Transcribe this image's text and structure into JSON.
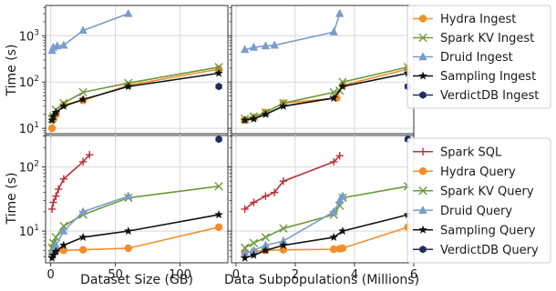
{
  "figure": {
    "ylabel_top": "Time (s)",
    "ylabel_bottom": "Time (s)",
    "xlabel_left": "Dataset Size (GB)",
    "xlabel_right": "Data Subpopulations (Millions)"
  },
  "styles": {
    "Hydra Ingest": {
      "color": "#f28e2b",
      "marker": "circle"
    },
    "Spark KV Ingest": {
      "color": "#6b9a3a",
      "marker": "x"
    },
    "Druid Ingest": {
      "color": "#7b9ccf",
      "marker": "triangle"
    },
    "Sampling Ingest": {
      "color": "#111111",
      "marker": "star"
    },
    "VerdictDB Ingest": {
      "color": "#1f2d5c",
      "marker": "hexagon"
    },
    "Spark SQL": {
      "color": "#b8323a",
      "marker": "plus"
    },
    "Hydra Query": {
      "color": "#f28e2b",
      "marker": "circle"
    },
    "Spark KV Query": {
      "color": "#6b9a3a",
      "marker": "x"
    },
    "Druid Query": {
      "color": "#7b9ccf",
      "marker": "triangle"
    },
    "Sampling Query": {
      "color": "#111111",
      "marker": "star"
    },
    "VerdictDB Query": {
      "color": "#1f2d5c",
      "marker": "hexagon"
    }
  },
  "legend_top": [
    "Hydra Ingest",
    "Spark KV Ingest",
    "Druid Ingest",
    "Sampling Ingest",
    "VerdictDB Ingest"
  ],
  "legend_bottom": [
    "Spark SQL",
    "Hydra Query",
    "Spark KV Query",
    "Druid Query",
    "Sampling Query",
    "VerdictDB Query"
  ],
  "chart_data": [
    {
      "id": "top-left",
      "type": "line",
      "yscale": "log",
      "xlim": [
        -4,
        137
      ],
      "ylim": [
        7,
        4500
      ],
      "xticks": [
        0,
        50,
        100
      ],
      "yticks": [
        10,
        100,
        1000
      ],
      "series": [
        {
          "name": "Hydra Ingest",
          "x": [
            1,
            2,
            4,
            10,
            25,
            60,
            130
          ],
          "y": [
            10,
            16,
            20,
            32,
            40,
            85,
            190
          ]
        },
        {
          "name": "Spark KV Ingest",
          "x": [
            1,
            2,
            4,
            10,
            25,
            60,
            130
          ],
          "y": [
            16,
            18,
            25,
            35,
            60,
            95,
            210
          ]
        },
        {
          "name": "Druid Ingest",
          "x": [
            1,
            2,
            5,
            10,
            25,
            60
          ],
          "y": [
            480,
            560,
            600,
            620,
            1300,
            3000
          ]
        },
        {
          "name": "Sampling Ingest",
          "x": [
            1,
            2,
            4,
            10,
            25,
            60,
            130
          ],
          "y": [
            15,
            18,
            22,
            30,
            42,
            80,
            155
          ]
        },
        {
          "name": "VerdictDB Ingest",
          "x": [
            130
          ],
          "y": [
            80
          ]
        }
      ]
    },
    {
      "id": "top-right",
      "type": "line",
      "yscale": "log",
      "xlim": [
        -0.15,
        6.0
      ],
      "ylim": [
        7,
        4500
      ],
      "xticks": [
        0,
        2,
        4,
        6
      ],
      "yticks": [
        10,
        100,
        1000
      ],
      "series": [
        {
          "name": "Hydra Ingest",
          "x": [
            0.3,
            0.6,
            1.0,
            1.6,
            3.4,
            3.6,
            5.8
          ],
          "y": [
            15,
            17,
            22,
            35,
            45,
            85,
            190
          ]
        },
        {
          "name": "Spark KV Ingest",
          "x": [
            0.3,
            0.6,
            1.0,
            1.6,
            3.3,
            3.5,
            3.6,
            5.8
          ],
          "y": [
            16,
            18,
            22,
            35,
            60,
            65,
            100,
            210
          ]
        },
        {
          "name": "Druid Ingest",
          "x": [
            0.3,
            0.6,
            1.0,
            1.3,
            3.3,
            3.5
          ],
          "y": [
            500,
            560,
            600,
            620,
            1200,
            3000
          ]
        },
        {
          "name": "Sampling Ingest",
          "x": [
            0.3,
            0.6,
            1.0,
            1.6,
            3.3,
            3.6,
            5.8
          ],
          "y": [
            15,
            16,
            20,
            30,
            45,
            80,
            155
          ]
        },
        {
          "name": "VerdictDB Ingest",
          "x": [
            5.8
          ],
          "y": [
            80
          ]
        }
      ]
    },
    {
      "id": "bottom-left",
      "type": "line",
      "yscale": "log",
      "xlim": [
        -4,
        137
      ],
      "ylim": [
        3.2,
        330
      ],
      "xticks": [
        0,
        50,
        100
      ],
      "yticks": [
        10,
        100
      ],
      "series": [
        {
          "name": "Spark SQL",
          "x": [
            1,
            2,
            4,
            6,
            10,
            25,
            30
          ],
          "y": [
            22,
            28,
            35,
            45,
            65,
            120,
            155
          ]
        },
        {
          "name": "Hydra Query",
          "x": [
            1,
            2,
            4,
            10,
            25,
            60,
            130
          ],
          "y": [
            4.3,
            4.6,
            4.8,
            5.0,
            5.1,
            5.4,
            11.5
          ]
        },
        {
          "name": "Spark KV Query",
          "x": [
            1,
            2,
            4,
            10,
            25,
            60,
            130
          ],
          "y": [
            5.5,
            6.5,
            8,
            12,
            18,
            33,
            50
          ]
        },
        {
          "name": "Druid Query",
          "x": [
            1,
            2,
            4,
            10,
            25,
            60
          ],
          "y": [
            4.5,
            5,
            6,
            10,
            20,
            35
          ]
        },
        {
          "name": "Sampling Query",
          "x": [
            1,
            2,
            4,
            10,
            25,
            60,
            130
          ],
          "y": [
            3.8,
            4.2,
            4.8,
            6,
            8,
            10,
            18
          ]
        },
        {
          "name": "VerdictDB Query",
          "x": [
            130
          ],
          "y": [
            270
          ]
        }
      ]
    },
    {
      "id": "bottom-right",
      "type": "line",
      "yscale": "log",
      "xlim": [
        -0.15,
        6.0
      ],
      "ylim": [
        3.2,
        330
      ],
      "xticks": [
        0,
        2,
        4,
        6
      ],
      "yticks": [
        10,
        100
      ],
      "series": [
        {
          "name": "Spark SQL",
          "x": [
            0.3,
            0.6,
            1.0,
            1.3,
            1.6,
            3.3,
            3.5
          ],
          "y": [
            22,
            28,
            35,
            40,
            60,
            120,
            150
          ]
        },
        {
          "name": "Hydra Query",
          "x": [
            0.3,
            0.6,
            1.0,
            1.6,
            3.3,
            3.5,
            3.6,
            5.8
          ],
          "y": [
            4.6,
            4.8,
            5.0,
            5.1,
            5.2,
            5.3,
            5.4,
            11.5
          ]
        },
        {
          "name": "Spark KV Query",
          "x": [
            0.3,
            0.6,
            1.0,
            1.6,
            3.3,
            3.5,
            3.6,
            5.8
          ],
          "y": [
            5.5,
            6.5,
            8,
            11,
            18,
            25,
            33,
            50
          ]
        },
        {
          "name": "Druid Query",
          "x": [
            0.3,
            0.6,
            1.0,
            1.6,
            3.3,
            3.5,
            3.6
          ],
          "y": [
            4.5,
            5,
            6,
            7,
            20,
            30,
            35
          ]
        },
        {
          "name": "Sampling Query",
          "x": [
            0.3,
            0.6,
            1.0,
            1.6,
            3.3,
            3.6,
            5.8
          ],
          "y": [
            3.8,
            4.2,
            5,
            6,
            8,
            10,
            18
          ]
        },
        {
          "name": "VerdictDB Query",
          "x": [
            5.8
          ],
          "y": [
            270
          ]
        }
      ]
    }
  ]
}
